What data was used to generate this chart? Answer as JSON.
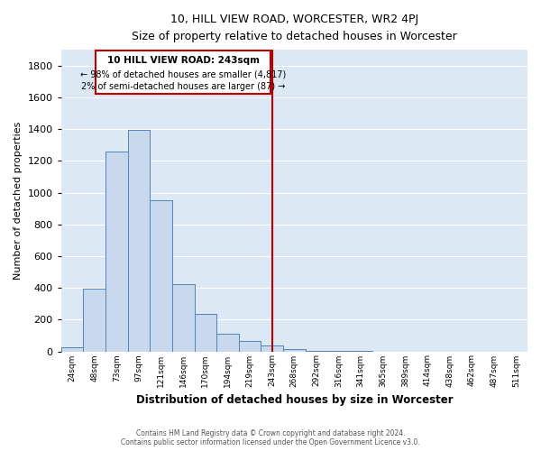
{
  "title": "10, HILL VIEW ROAD, WORCESTER, WR2 4PJ",
  "subtitle": "Size of property relative to detached houses in Worcester",
  "xlabel": "Distribution of detached houses by size in Worcester",
  "ylabel": "Number of detached properties",
  "bar_labels": [
    "24sqm",
    "48sqm",
    "73sqm",
    "97sqm",
    "121sqm",
    "146sqm",
    "170sqm",
    "194sqm",
    "219sqm",
    "243sqm",
    "268sqm",
    "292sqm",
    "316sqm",
    "341sqm",
    "365sqm",
    "389sqm",
    "414sqm",
    "438sqm",
    "462sqm",
    "487sqm",
    "511sqm"
  ],
  "bar_values": [
    25,
    395,
    1260,
    1395,
    950,
    425,
    235,
    110,
    65,
    35,
    15,
    5,
    5,
    2,
    0,
    0,
    0,
    0,
    0,
    0,
    0
  ],
  "bar_color": "#c8d9ed",
  "bar_edge_color": "#5585b5",
  "background_color": "#dce9f5",
  "grid_color": "#ffffff",
  "vline_x": 9.5,
  "vline_color": "#bb0000",
  "annotation_title": "10 HILL VIEW ROAD: 243sqm",
  "annotation_line1": "← 98% of detached houses are smaller (4,817)",
  "annotation_line2": "2% of semi-detached houses are larger (87) →",
  "ylim": [
    0,
    1900
  ],
  "yticks": [
    0,
    200,
    400,
    600,
    800,
    1000,
    1200,
    1400,
    1600,
    1800
  ],
  "fig_bg": "#ffffff",
  "footnote1": "Contains HM Land Registry data © Crown copyright and database right 2024.",
  "footnote2": "Contains public sector information licensed under the Open Government Licence v3.0."
}
